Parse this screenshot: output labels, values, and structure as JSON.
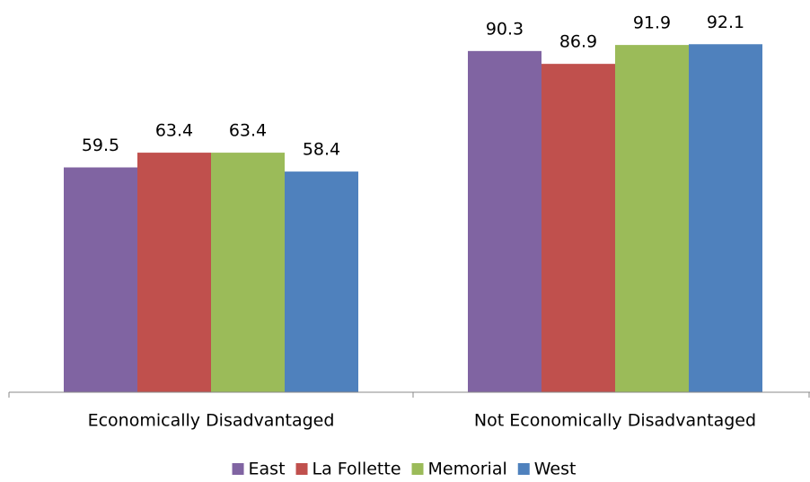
{
  "chart_data": {
    "type": "bar",
    "categories": [
      "Economically Disadvantaged",
      "Not Economically Disadvantaged"
    ],
    "series": [
      {
        "name": "East",
        "color": "#8064a2",
        "values": [
          59.5,
          90.3
        ]
      },
      {
        "name": "La Follette",
        "color": "#c0504d",
        "values": [
          63.4,
          86.9
        ]
      },
      {
        "name": "Memorial",
        "color": "#9bbb59",
        "values": [
          63.4,
          91.9
        ]
      },
      {
        "name": "West",
        "color": "#4f81bd",
        "values": [
          58.4,
          92.1
        ]
      }
    ],
    "ylim": [
      0,
      100
    ],
    "legend": "bottom"
  }
}
